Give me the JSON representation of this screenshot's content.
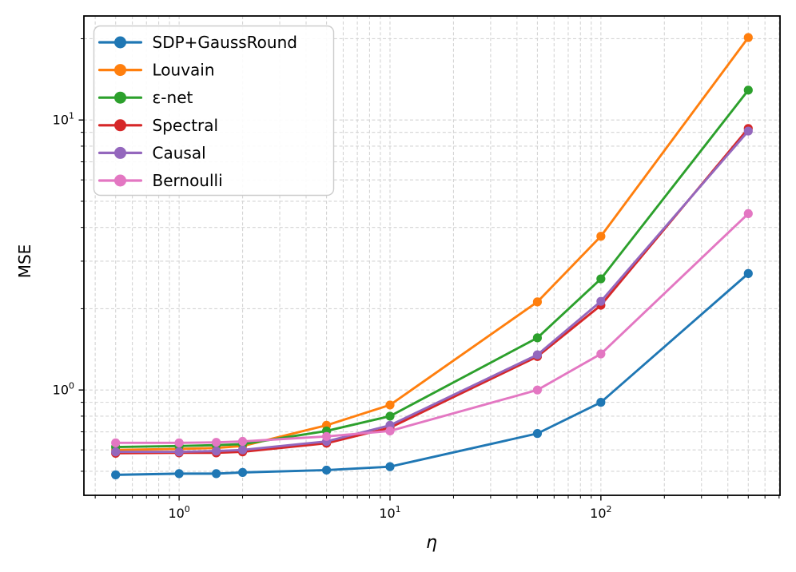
{
  "figure": {
    "background": "#ffffff",
    "frame_color": "#000000"
  },
  "chart_data": {
    "type": "line",
    "title": "",
    "xlabel": "η",
    "ylabel": "MSE",
    "xscale": "log",
    "yscale": "log",
    "xlim": [
      0.3536,
      707.1
    ],
    "ylim": [
      0.4073,
      24.28
    ],
    "grid": true,
    "grid_style": "dashed",
    "grid_color": "#d4d4d4",
    "x": [
      0.5,
      1,
      1.5,
      2,
      5,
      10,
      50,
      100,
      500
    ],
    "series": [
      {
        "name": "SDP+GaussRound",
        "color": "#1f77b4",
        "values": [
          0.485,
          0.49,
          0.49,
          0.495,
          0.505,
          0.52,
          0.69,
          0.9,
          2.7
        ]
      },
      {
        "name": "Louvain",
        "color": "#ff7f0e",
        "values": [
          0.6,
          0.605,
          0.61,
          0.62,
          0.74,
          0.88,
          2.12,
          3.71,
          20.2
        ]
      },
      {
        "name": "ε-net",
        "color": "#2ca02c",
        "values": [
          0.615,
          0.62,
          0.625,
          0.63,
          0.705,
          0.8,
          1.56,
          2.58,
          12.9
        ]
      },
      {
        "name": "Spectral",
        "color": "#d62728",
        "values": [
          0.583,
          0.585,
          0.585,
          0.59,
          0.635,
          0.725,
          1.33,
          2.06,
          9.3
        ]
      },
      {
        "name": "Causal",
        "color": "#9467bd",
        "values": [
          0.59,
          0.59,
          0.594,
          0.6,
          0.645,
          0.74,
          1.35,
          2.13,
          9.1
        ]
      },
      {
        "name": "Bernoulli",
        "color": "#e377c2",
        "values": [
          0.637,
          0.637,
          0.64,
          0.645,
          0.673,
          0.705,
          1.0,
          1.36,
          4.5
        ]
      }
    ],
    "x_tick_labels": [
      {
        "value": 1,
        "base": "10",
        "exp": "0"
      },
      {
        "value": 10,
        "base": "10",
        "exp": "1"
      },
      {
        "value": 100,
        "base": "10",
        "exp": "2"
      }
    ],
    "y_tick_labels": [
      {
        "value": 1,
        "base": "10",
        "exp": "0"
      },
      {
        "value": 10,
        "base": "10",
        "exp": "1"
      }
    ],
    "legend": {
      "position": "upper left",
      "border_color": "#cccccc",
      "background": "#ffffff",
      "entries": [
        "SDP+GaussRound",
        "Louvain",
        "ε-net",
        "Spectral",
        "Causal",
        "Bernoulli"
      ]
    }
  }
}
